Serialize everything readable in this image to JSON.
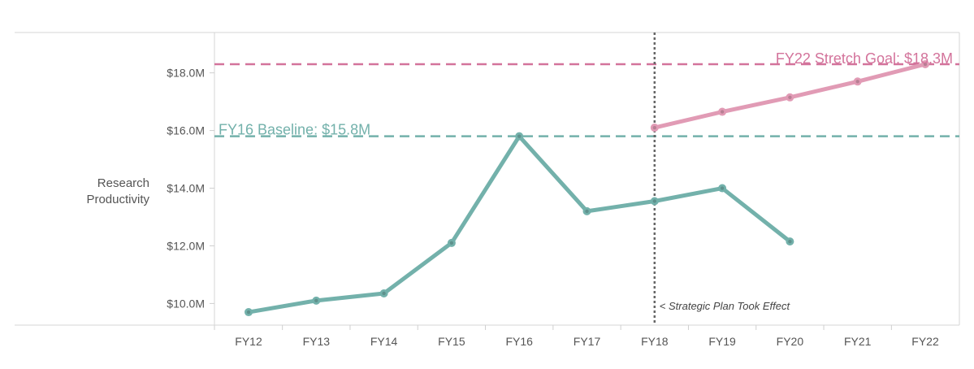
{
  "chart_data": {
    "type": "line",
    "ylabel": [
      "Research",
      "Productivity"
    ],
    "xlabel": "",
    "categories": [
      "FY12",
      "FY13",
      "FY14",
      "FY15",
      "FY16",
      "FY17",
      "FY18",
      "FY19",
      "FY20",
      "FY21",
      "FY22"
    ],
    "ylim": [
      9.25,
      19.4
    ],
    "y_ticks": [
      10,
      12,
      14,
      16,
      18
    ],
    "y_tick_labels": [
      "$10.0M",
      "$12.0M",
      "$14.0M",
      "$16.0M",
      "$18.0M"
    ],
    "grid": false,
    "series": [
      {
        "role": "actual",
        "color": "#73b1ab",
        "points": [
          {
            "x": "FY12",
            "y": 9.7
          },
          {
            "x": "FY13",
            "y": 10.1
          },
          {
            "x": "FY14",
            "y": 10.35
          },
          {
            "x": "FY15",
            "y": 12.1
          },
          {
            "x": "FY16",
            "y": 15.8
          },
          {
            "x": "FY17",
            "y": 13.2
          },
          {
            "x": "FY18",
            "y": 13.55
          },
          {
            "x": "FY19",
            "y": 14.0
          },
          {
            "x": "FY20",
            "y": 12.15
          }
        ]
      },
      {
        "role": "goal-trajectory",
        "color": "#e19bb5",
        "points": [
          {
            "x": "FY18",
            "y": 16.1
          },
          {
            "x": "FY19",
            "y": 16.65
          },
          {
            "x": "FY20",
            "y": 17.15
          },
          {
            "x": "FY21",
            "y": 17.7
          },
          {
            "x": "FY22",
            "y": 18.3
          }
        ]
      }
    ],
    "reference_lines": [
      {
        "role": "baseline",
        "value": 15.8,
        "label": "FY16  Baseline: $15.8M",
        "color": "#73b1ab"
      },
      {
        "role": "stretch-goal",
        "value": 18.3,
        "label": "FY22 Stretch Goal: $18.3M",
        "color": "#d3739b"
      }
    ],
    "event_line": {
      "x": "FY18",
      "label": "< Strategic Plan Took Effect",
      "color": "#666666"
    }
  }
}
